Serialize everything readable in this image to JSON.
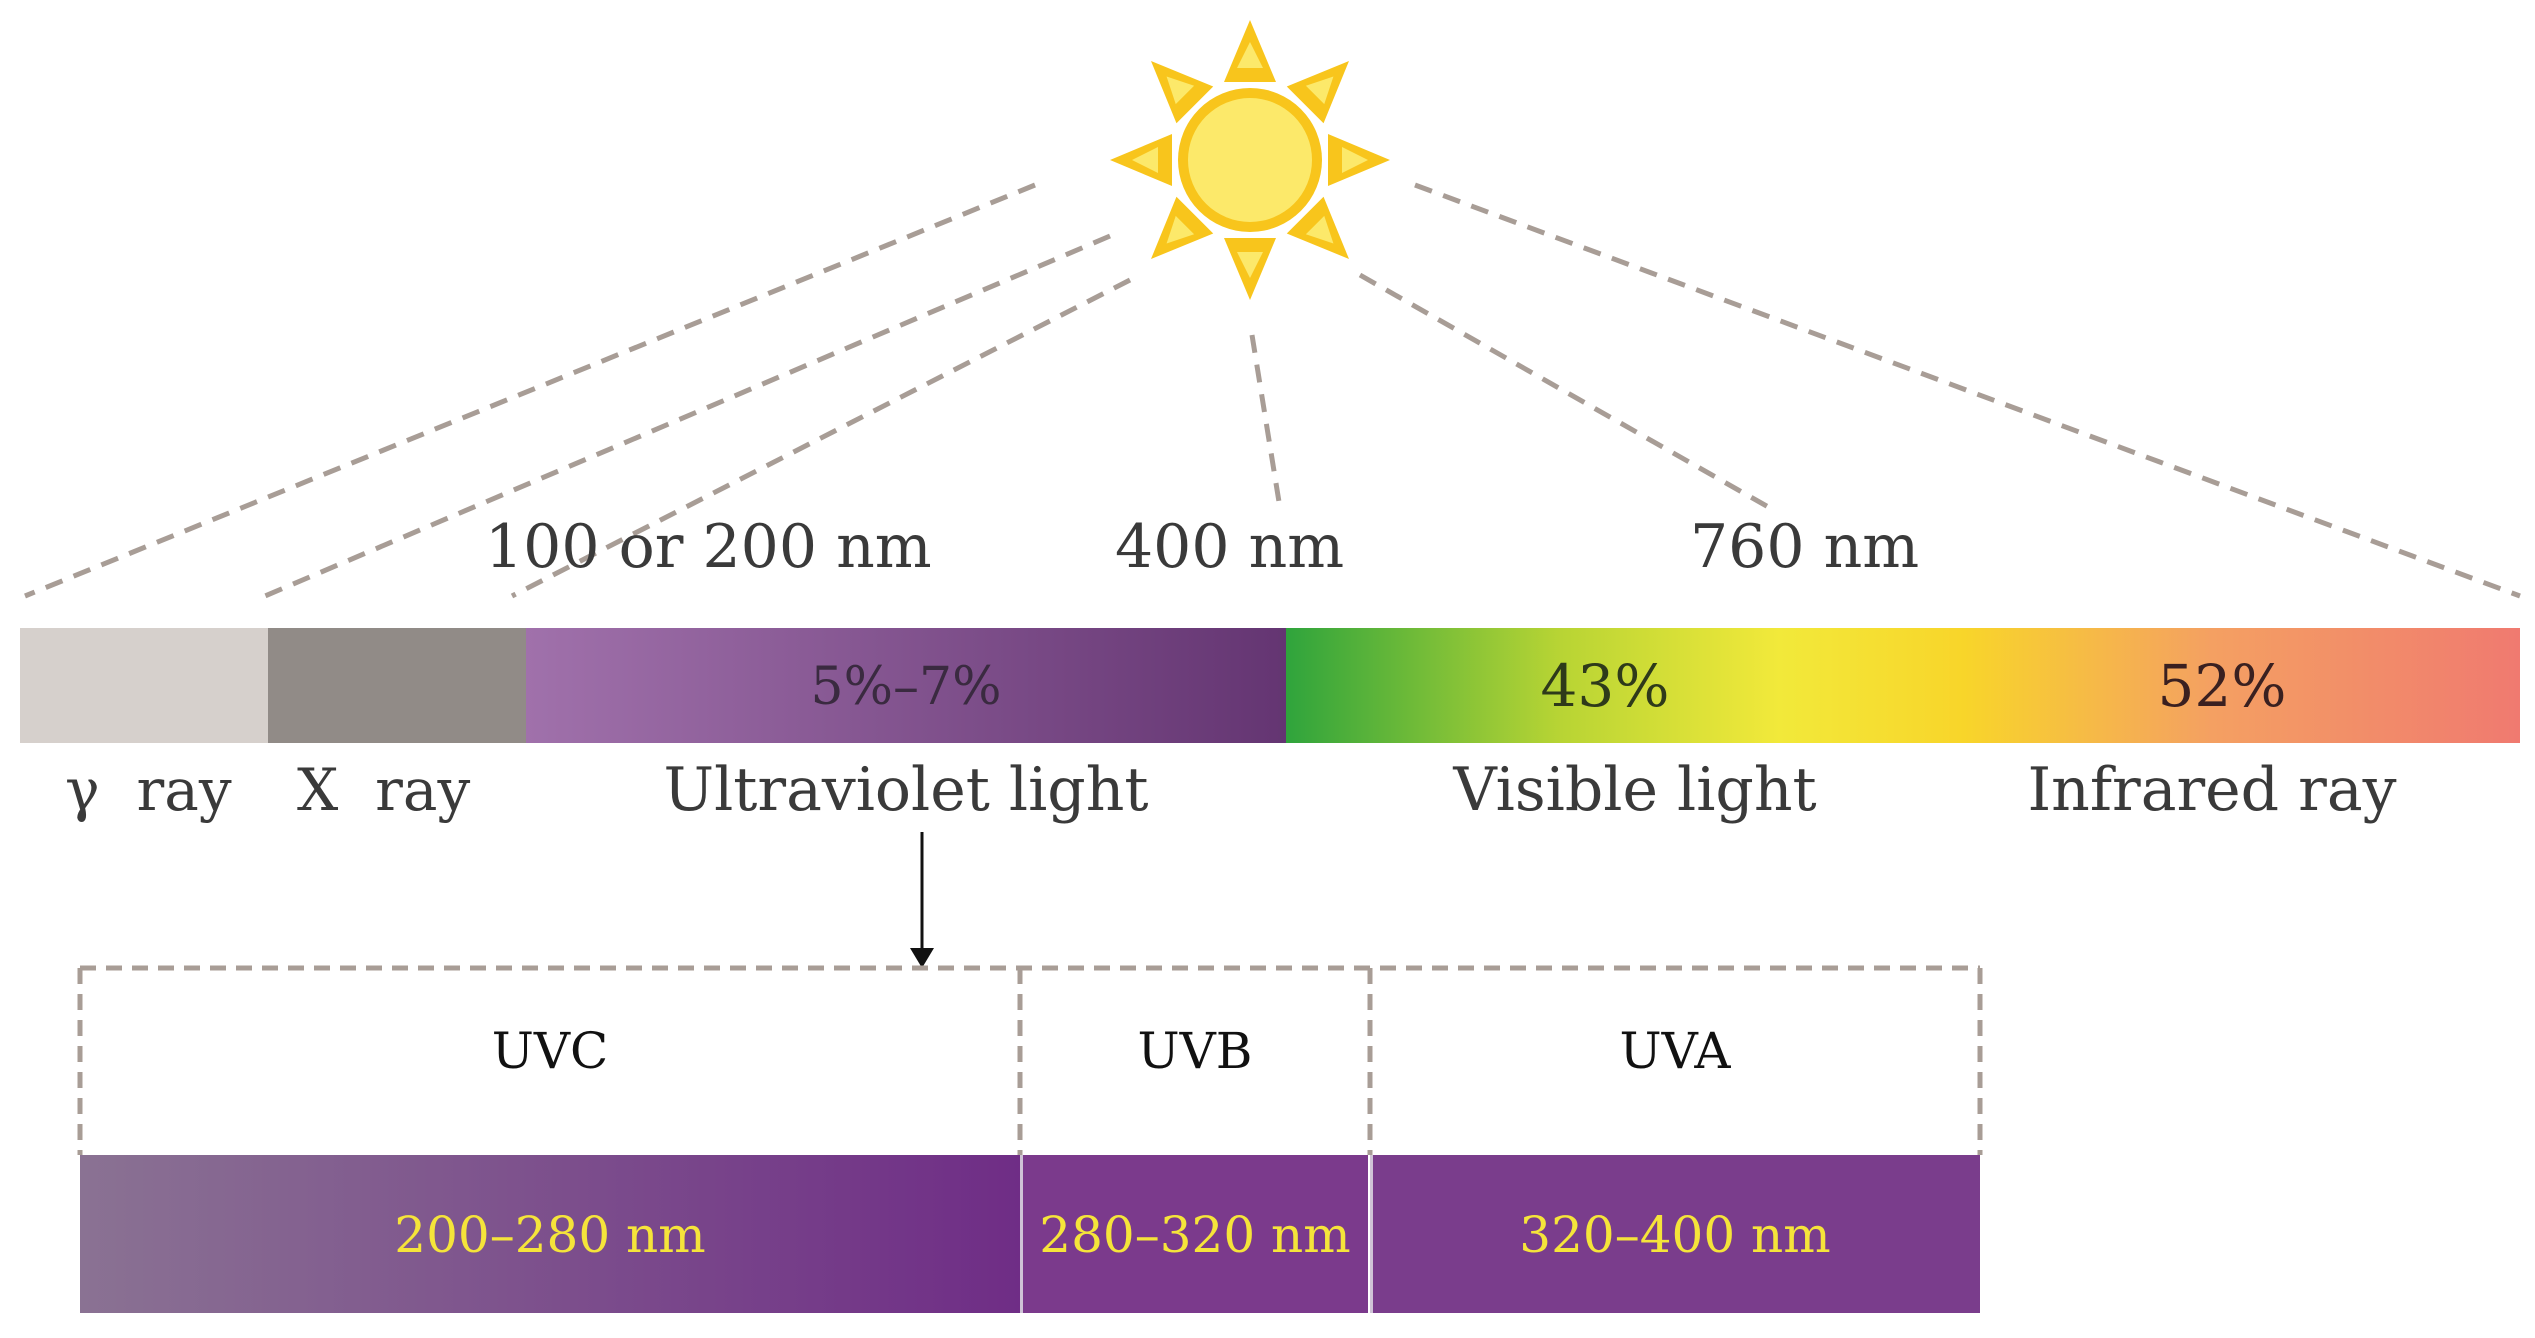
{
  "boundaries": {
    "b1": "100 or 200 nm",
    "b2": "400 nm",
    "b3": "760 nm"
  },
  "spectrum": {
    "uv_percent": "5%–7%",
    "visible_percent": "43%",
    "infrared_percent": "52%",
    "labels": {
      "gamma": "γ  ray",
      "xray": "X  ray",
      "uv": "Ultraviolet light",
      "visible": "Visible light",
      "infrared": "Infrared ray"
    }
  },
  "uv_bands": [
    {
      "name": "UVC",
      "range": "200–280 nm"
    },
    {
      "name": "UVB",
      "range": "280–320 nm"
    },
    {
      "name": "UVA",
      "range": "320–400 nm"
    }
  ],
  "colors": {
    "gamma": "#d6d0cc",
    "xray": "#918b87",
    "uv_light": "#9b6aa6",
    "uv_dark": "#6b3a78",
    "green": "#2fa43c",
    "yellow": "#f2e93a",
    "salmon": "#f07a70",
    "sun": "#f8c51c",
    "sun_inner": "#fce96a",
    "range_text": "#f5e43a",
    "dash": "#a89d96",
    "uvc_start": "#8a7293",
    "uvc_end": "#6f2d86",
    "uvb": "#7b3a8c",
    "uva": "#7a3d8c"
  }
}
